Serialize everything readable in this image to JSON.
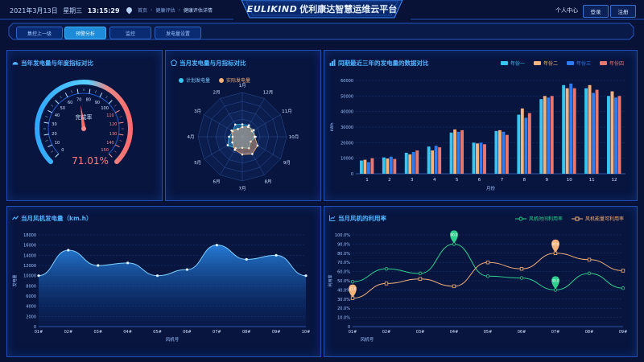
{
  "header": {
    "date": "2021年3月13日",
    "weekday": "星期三",
    "time": "13:15:29",
    "breadcrumbs": [
      "首页",
      "健康评估",
      "健康评估详情"
    ],
    "brand": "EULIKIND",
    "title": "优利康达智慧运维云平台",
    "user_center": "个人中心",
    "login": "登录",
    "register": "注册"
  },
  "tabs": [
    {
      "label": "集控上一级",
      "active": false
    },
    {
      "label": "预警分析",
      "active": true
    },
    {
      "label": "监控",
      "active": false
    },
    {
      "label": "发电量设置",
      "active": false
    }
  ],
  "colors": {
    "cyan": "#36c6f2",
    "orange": "#f5b27a",
    "blue": "#2f7cf0",
    "salmon": "#e8786f",
    "green": "#2fd08d",
    "line": "#4fb4ff"
  },
  "gauge_panel": {
    "title": "当年发电量与年度指标对比",
    "label": "完成率",
    "value_text": "71.01%",
    "chart_data": {
      "type": "gauge",
      "value": 71.01,
      "min": 0,
      "max": 150,
      "ticks": [
        "0",
        "10",
        "20",
        "30",
        "40",
        "50",
        "60",
        "70",
        "80",
        "90",
        "100",
        "110",
        "120",
        "130",
        "140",
        "150"
      ]
    }
  },
  "radar_panel": {
    "title": "当月发电量与月指标对比",
    "chart_data": {
      "type": "radar",
      "axes": [
        "1月",
        "12月",
        "11月",
        "10月",
        "9月",
        "8月",
        "7月",
        "6月",
        "5月",
        "4月",
        "3月",
        "2月"
      ],
      "max": 100,
      "series": [
        {
          "name": "计划发电量",
          "values": [
            28,
            30,
            25,
            30,
            22,
            30,
            25,
            30,
            38,
            30,
            25,
            32
          ]
        },
        {
          "name": "实际发电量",
          "values": [
            22,
            26,
            30,
            28,
            40,
            45,
            40,
            34,
            26,
            22,
            28,
            20
          ]
        }
      ]
    }
  },
  "bar_panel": {
    "title": "同期最近三年的发电量的数据对比",
    "chart_data": {
      "type": "bar",
      "ylabel": "kWh",
      "xlabel": "月份",
      "ylim": [
        0,
        60000
      ],
      "yticks": [
        "0",
        "10000",
        "20000",
        "30000",
        "40000",
        "50000",
        "60000"
      ],
      "categories": [
        "1",
        "2",
        "3",
        "4",
        "5",
        "6",
        "7",
        "8",
        "9",
        "10",
        "11",
        "12"
      ],
      "series": [
        {
          "name": "年份一",
          "values": [
            8500,
            10500,
            13500,
            17500,
            26500,
            20000,
            27500,
            38000,
            48000,
            57000,
            55000,
            50000
          ]
        },
        {
          "name": "年份二",
          "values": [
            9000,
            9800,
            12500,
            15000,
            28500,
            19500,
            28000,
            42000,
            50000,
            55000,
            57000,
            53000
          ]
        },
        {
          "name": "年份三",
          "values": [
            7500,
            11000,
            14000,
            18000,
            27000,
            20000,
            27000,
            36000,
            49000,
            58000,
            52000,
            49000
          ]
        },
        {
          "name": "年份四",
          "values": [
            10000,
            9500,
            15000,
            17000,
            28000,
            19000,
            25000,
            39000,
            50000,
            55000,
            54000,
            50000
          ]
        }
      ]
    }
  },
  "area_panel": {
    "title": "当月风机发电量（km.h）",
    "chart_data": {
      "type": "area",
      "ylabel": "发电量",
      "xlabel": "风机号",
      "ylim": [
        0,
        18000
      ],
      "yticks": [
        "0",
        "2000",
        "4000",
        "6000",
        "8000",
        "10000",
        "12000",
        "14000",
        "16000",
        "18000"
      ],
      "categories": [
        "01#",
        "02#",
        "03#",
        "04#",
        "05#",
        "06#",
        "07#",
        "08#",
        "09#",
        "10#"
      ],
      "values": [
        10000,
        15000,
        12000,
        12500,
        10000,
        11200,
        16000,
        13200,
        14000,
        10000
      ]
    }
  },
  "line_panel": {
    "title": "当月风机的利用率",
    "chart_data": {
      "type": "line",
      "ylabel": "利用率",
      "xlabel": "风机号",
      "ylim": [
        0,
        100
      ],
      "yticks": [
        "0",
        "10.0%",
        "20.0%",
        "30.0%",
        "40.0%",
        "50.0%",
        "60.0%",
        "70.0%",
        "80.0%",
        "90.0%",
        "100.0%"
      ],
      "categories": [
        "01#",
        "02#",
        "03#",
        "04#",
        "05#",
        "06#",
        "07#",
        "08#",
        "09#"
      ],
      "series": [
        {
          "name": "风机时间利用率",
          "values": [
            49,
            63,
            58,
            90,
            55,
            53,
            40,
            58,
            42
          ]
        },
        {
          "name": "风机能量可利用率",
          "values": [
            31,
            47,
            52,
            44,
            70,
            63,
            80,
            73,
            61
          ]
        }
      ],
      "markers": [
        {
          "series": 0,
          "index": 3,
          "label": "90.0"
        },
        {
          "series": 0,
          "index": 6,
          "label": "40.0"
        },
        {
          "series": 1,
          "index": 0,
          "label": "31.0"
        },
        {
          "series": 1,
          "index": 6,
          "label": "80.0"
        }
      ]
    }
  }
}
